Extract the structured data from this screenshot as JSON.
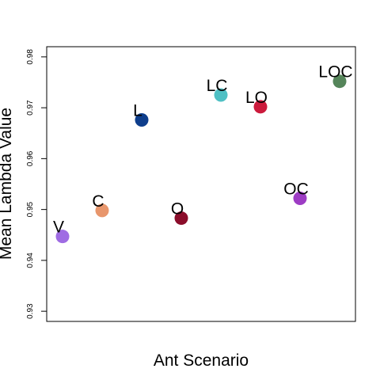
{
  "chart_data": {
    "type": "scatter",
    "title": "",
    "xlabel": "Ant Scenario",
    "ylabel": "Mean Lambda Value",
    "ylim": [
      0.928,
      0.982
    ],
    "yticks": [
      0.93,
      0.94,
      0.95,
      0.96,
      0.97,
      0.98
    ],
    "ytick_labels": [
      "0.93",
      "0.94",
      "0.95",
      "0.96",
      "0.97",
      "0.98"
    ],
    "grid": false,
    "legend": "none",
    "points": [
      {
        "label": "V",
        "x": 1,
        "y": 0.9447,
        "color": "#9f6ce3"
      },
      {
        "label": "C",
        "x": 2,
        "y": 0.9498,
        "color": "#e8966c"
      },
      {
        "label": "L",
        "x": 3,
        "y": 0.9676,
        "color": "#0e3e8c"
      },
      {
        "label": "O",
        "x": 4,
        "y": 0.9483,
        "color": "#8b0d2b"
      },
      {
        "label": "LC",
        "x": 5,
        "y": 0.9725,
        "color": "#4fc0c4"
      },
      {
        "label": "LO",
        "x": 6,
        "y": 0.9702,
        "color": "#cc1a3c"
      },
      {
        "label": "OC",
        "x": 7,
        "y": 0.9522,
        "color": "#9d3cc4"
      },
      {
        "label": "LOC",
        "x": 8,
        "y": 0.9752,
        "color": "#55855a"
      }
    ]
  }
}
